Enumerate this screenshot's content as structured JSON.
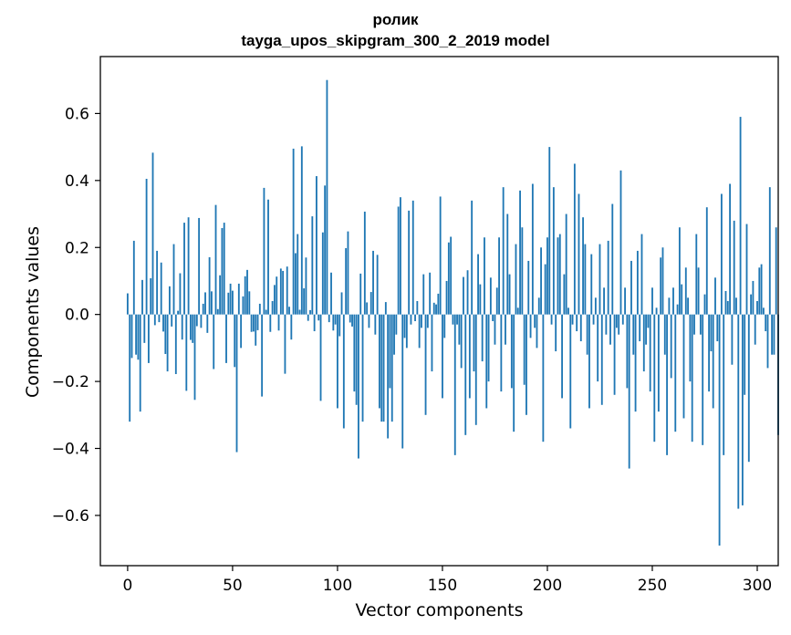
{
  "title_lines": [
    "ролик",
    "tayga_upos_skipgram_300_2_2019 model"
  ],
  "colors": {
    "bar": "#1f77b4",
    "axes": "#000000"
  },
  "chart_data": {
    "type": "bar",
    "title": "ролик\ntayga_upos_skipgram_300_2_2019 model",
    "xlabel": "Vector components",
    "ylabel": "Components values",
    "xlim": [
      -13,
      310
    ],
    "ylim": [
      -0.75,
      0.77
    ],
    "xticks": [
      0,
      50,
      100,
      150,
      200,
      250,
      300
    ],
    "xtick_labels": [
      "0",
      "50",
      "100",
      "150",
      "200",
      "250",
      "300"
    ],
    "yticks": [
      -0.6,
      -0.4,
      -0.2,
      0.0,
      0.2,
      0.4,
      0.6
    ],
    "ytick_labels": [
      "−0.6",
      "−0.4",
      "−0.2",
      "0.0",
      "0.2",
      "0.4",
      "0.6"
    ],
    "bar_width": 0.8,
    "x_start": 0,
    "values": [
      0.063,
      -0.32,
      -0.13,
      0.22,
      -0.12,
      -0.135,
      -0.29,
      0.103,
      -0.085,
      0.405,
      -0.145,
      0.108,
      0.483,
      -0.032,
      0.19,
      -0.023,
      0.155,
      -0.051,
      -0.118,
      -0.17,
      0.084,
      -0.036,
      0.21,
      -0.178,
      0.011,
      0.123,
      -0.075,
      0.274,
      -0.228,
      0.29,
      -0.076,
      -0.085,
      -0.255,
      -0.035,
      0.288,
      -0.04,
      0.032,
      0.066,
      -0.055,
      0.171,
      0.069,
      -0.163,
      0.327,
      0.016,
      0.117,
      0.258,
      0.274,
      -0.145,
      0.065,
      0.092,
      0.071,
      -0.157,
      -0.411,
      0.092,
      -0.1,
      0.054,
      0.114,
      0.133,
      0.069,
      -0.052,
      -0.051,
      -0.093,
      -0.047,
      0.032,
      -0.245,
      0.378,
      0.014,
      0.343,
      -0.052,
      0.04,
      0.088,
      0.113,
      -0.048,
      0.137,
      0.13,
      -0.177,
      0.143,
      0.023,
      -0.075,
      0.495,
      0.183,
      0.24,
      0.014,
      0.502,
      0.078,
      0.17,
      -0.019,
      0.013,
      0.293,
      -0.05,
      0.413,
      -0.018,
      -0.258,
      0.245,
      0.385,
      0.7,
      -0.023,
      0.125,
      -0.048,
      -0.03,
      -0.28,
      -0.065,
      0.066,
      -0.34,
      0.198,
      0.248,
      -0.024,
      -0.036,
      -0.23,
      -0.27,
      -0.43,
      0.122,
      -0.32,
      0.307,
      0.036,
      -0.04,
      0.067,
      0.19,
      -0.06,
      0.178,
      -0.28,
      -0.32,
      -0.32,
      0.037,
      -0.37,
      -0.22,
      -0.32,
      -0.12,
      -0.06,
      0.322,
      0.35,
      -0.4,
      -0.07,
      -0.1,
      0.31,
      -0.03,
      0.34,
      -0.02,
      0.04,
      -0.1,
      -0.04,
      0.12,
      -0.3,
      -0.04,
      0.125,
      -0.17,
      0.035,
      0.03,
      0.062,
      0.352,
      -0.25,
      -0.07,
      0.1,
      0.215,
      0.232,
      -0.03,
      -0.42,
      -0.03,
      -0.09,
      -0.16,
      0.112,
      -0.36,
      0.132,
      -0.25,
      0.34,
      -0.17,
      -0.33,
      0.18,
      0.09,
      -0.14,
      0.23,
      -0.28,
      -0.2,
      0.11,
      -0.02,
      -0.09,
      0.08,
      0.23,
      -0.23,
      0.38,
      -0.09,
      0.3,
      0.12,
      -0.22,
      -0.35,
      0.21,
      0.02,
      0.37,
      0.26,
      -0.21,
      -0.3,
      0.16,
      -0.07,
      0.39,
      -0.04,
      -0.1,
      0.05,
      0.2,
      -0.38,
      0.15,
      0.23,
      0.5,
      -0.03,
      0.38,
      -0.11,
      0.23,
      0.24,
      -0.25,
      0.12,
      0.3,
      0.02,
      -0.34,
      -0.03,
      0.45,
      -0.05,
      0.36,
      -0.08,
      0.29,
      0.21,
      -0.12,
      -0.28,
      0.18,
      -0.03,
      0.05,
      -0.2,
      0.21,
      -0.27,
      0.08,
      -0.06,
      0.22,
      -0.09,
      0.33,
      -0.24,
      -0.04,
      -0.06,
      0.43,
      -0.03,
      0.08,
      -0.22,
      -0.46,
      0.16,
      -0.12,
      -0.29,
      0.19,
      -0.08,
      0.24,
      -0.17,
      -0.09,
      -0.04,
      -0.23,
      0.08,
      -0.38,
      0.02,
      -0.29,
      0.17,
      0.2,
      -0.12,
      -0.42,
      0.05,
      -0.19,
      0.08,
      -0.35,
      0.03,
      0.26,
      0.09,
      -0.31,
      0.14,
      0.05,
      -0.2,
      -0.38,
      -0.06,
      0.24,
      0.14,
      -0.06,
      -0.39,
      0.06,
      0.32,
      -0.23,
      -0.11,
      -0.28,
      0.11,
      -0.08,
      -0.69,
      0.36,
      -0.42,
      0.07,
      0.04,
      0.39,
      -0.15,
      0.28,
      0.05,
      -0.58,
      0.59,
      -0.57,
      -0.24,
      0.27,
      -0.44,
      0.06,
      0.1,
      -0.09,
      0.04,
      0.14,
      0.15,
      0.02,
      -0.05,
      -0.16,
      0.38,
      -0.12,
      -0.12,
      0.26,
      -0.36
    ]
  }
}
